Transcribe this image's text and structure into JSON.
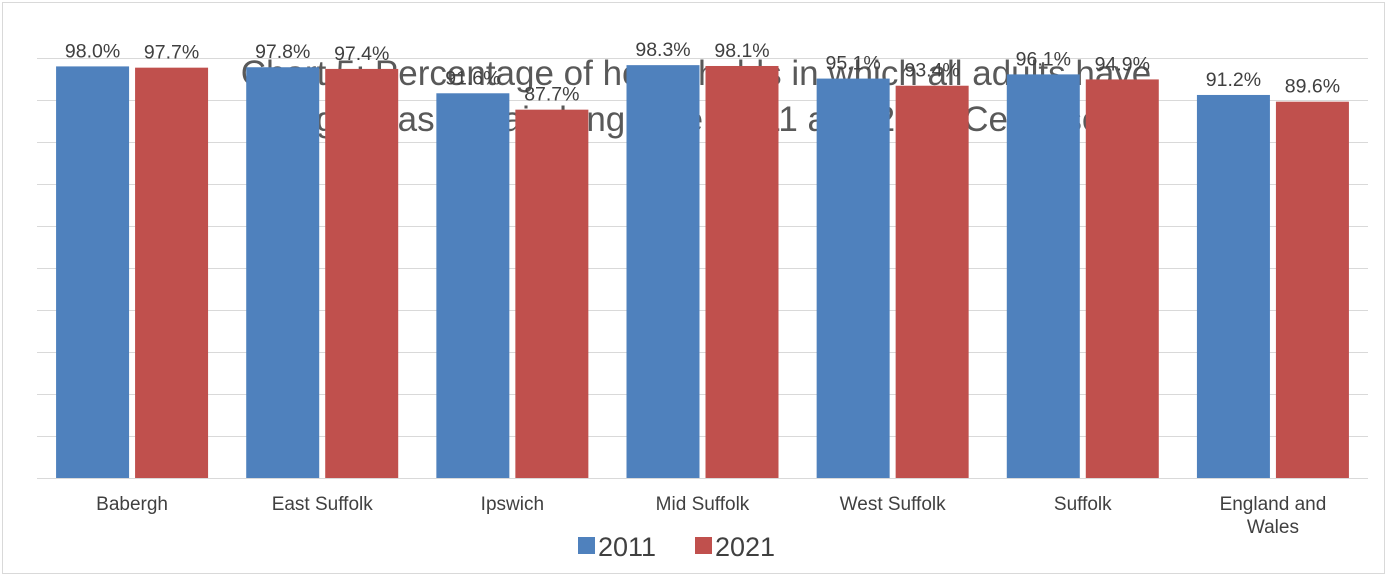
{
  "chart_data": {
    "type": "bar",
    "title": "Chart 5: Percentage of households in which all adults have English as a main language, 2011 and 2021 Censuses",
    "title_lines": [
      "Chart 5: Percentage of households in which all adults have",
      "English as a main language, 2011 and 2021 Censuses"
    ],
    "categories": [
      "Babergh",
      "East Suffolk",
      "Ipswich",
      "Mid Suffolk",
      "West Suffolk",
      "Suffolk",
      "England and Wales"
    ],
    "series": [
      {
        "name": "2011",
        "color": "#4f81bd",
        "values": [
          98.0,
          97.8,
          91.6,
          98.3,
          95.1,
          96.1,
          91.2
        ],
        "labels": [
          "98.0%",
          "97.8%",
          "91.6%",
          "98.3%",
          "95.1%",
          "96.1%",
          "91.2%"
        ]
      },
      {
        "name": "2021",
        "color": "#c0504d",
        "values": [
          97.7,
          97.4,
          87.7,
          98.1,
          93.4,
          94.9,
          89.6
        ],
        "labels": [
          "97.7%",
          "97.4%",
          "87.7%",
          "98.1%",
          "93.4%",
          "94.9%",
          "89.6%"
        ]
      }
    ],
    "ylim": [
      0,
      100
    ],
    "gridlines": true,
    "gridline_step": 10,
    "legend_position": "bottom"
  }
}
